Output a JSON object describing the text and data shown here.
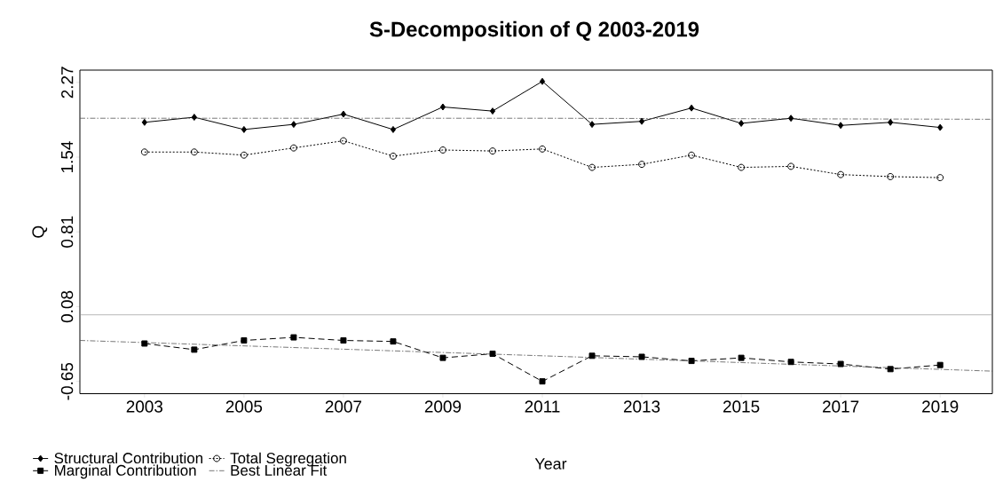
{
  "chart_data": {
    "type": "line",
    "title": "S-Decomposition of Q 2003-2019",
    "xlabel": "Year",
    "ylabel": "Q",
    "x": [
      2003,
      2004,
      2005,
      2006,
      2007,
      2008,
      2009,
      2010,
      2011,
      2012,
      2013,
      2014,
      2015,
      2016,
      2017,
      2018,
      2019
    ],
    "series": [
      {
        "name": "Structural Contribution",
        "color": "#000000",
        "marker": "diamond",
        "line_style": "solid",
        "values": [
          1.88,
          1.93,
          1.81,
          1.86,
          1.96,
          1.81,
          2.03,
          1.99,
          2.28,
          1.86,
          1.89,
          2.02,
          1.87,
          1.92,
          1.85,
          1.88,
          1.83
        ]
      },
      {
        "name": "Total Segregation",
        "color": "#000000",
        "marker": "circle",
        "line_style": "dotted",
        "values": [
          1.59,
          1.59,
          1.56,
          1.63,
          1.7,
          1.55,
          1.61,
          1.6,
          1.62,
          1.44,
          1.47,
          1.56,
          1.44,
          1.45,
          1.37,
          1.35,
          1.34
        ]
      },
      {
        "name": "Marginal Contribution",
        "color": "#000000",
        "marker": "square",
        "line_style": "dashed",
        "values": [
          -0.28,
          -0.34,
          -0.25,
          -0.22,
          -0.25,
          -0.26,
          -0.42,
          -0.38,
          -0.65,
          -0.4,
          -0.41,
          -0.45,
          -0.42,
          -0.46,
          -0.48,
          -0.53,
          -0.49
        ]
      },
      {
        "name": "Best Linear Fit",
        "color": "#555555",
        "marker": "none",
        "line_style": "dashdot",
        "x": [
          2001.7,
          2011,
          2020.05
        ],
        "values": [
          1.92,
          1.92,
          1.91
        ]
      },
      {
        "color": "#555555",
        "marker": "none",
        "line_style": "dashdot",
        "x": [
          2001.7,
          2011,
          2020.05
        ],
        "values": [
          -0.25,
          -0.4,
          -0.55
        ]
      }
    ],
    "xlim": [
      2001.7,
      2020.05
    ],
    "ylim": [
      -0.77,
      2.39
    ],
    "xticks": [
      2003,
      2005,
      2007,
      2009,
      2011,
      2013,
      2015,
      2017,
      2019
    ],
    "yticks": [
      -0.65,
      0.08,
      0.81,
      1.54,
      2.27
    ],
    "ref_lines": [
      {
        "axis": "y",
        "value": 0,
        "color": "#888888",
        "line_style": "solid"
      }
    ],
    "grid": false,
    "legend": "bottom left"
  }
}
